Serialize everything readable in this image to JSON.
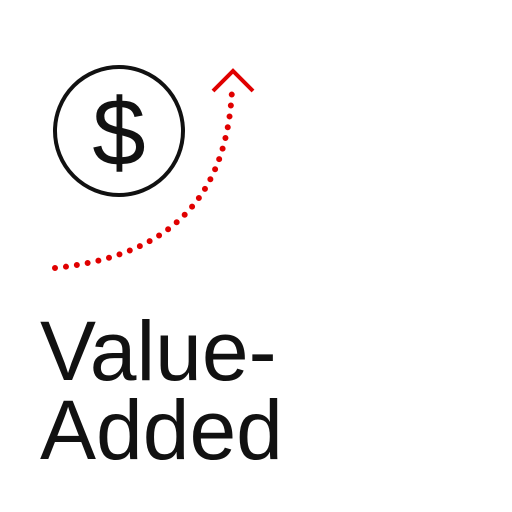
{
  "icon": {
    "symbol": "$"
  },
  "label": {
    "lines": [
      "Value-",
      "Added"
    ]
  }
}
